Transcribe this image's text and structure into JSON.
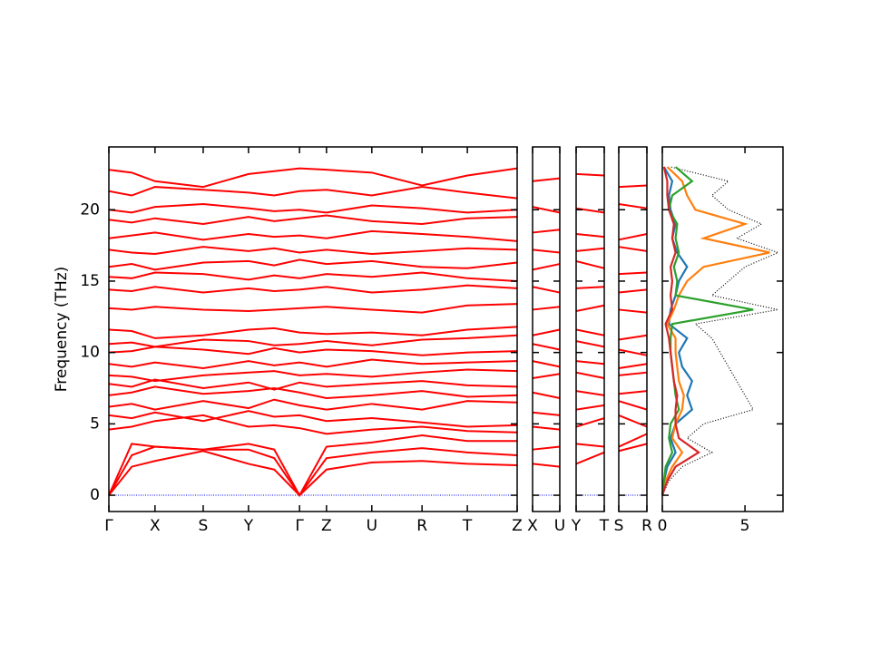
{
  "chart_data": [
    {
      "type": "band",
      "color": "#ff0000",
      "ylabel": "Frequency (THz)",
      "ylim": [
        -1.14,
        24.4
      ],
      "yticks": [
        0,
        5,
        10,
        15,
        20
      ],
      "hline": 0,
      "hline_color": "#0000ff",
      "xlim": [
        0,
        1
      ],
      "xticks": [
        {
          "value": 0,
          "label": "Γ"
        },
        {
          "value": 0.113,
          "label": "X"
        },
        {
          "value": 0.231,
          "label": "S"
        },
        {
          "value": 0.342,
          "label": "Y"
        },
        {
          "value": 0.467,
          "label": "Γ"
        },
        {
          "value": 0.533,
          "label": "Z"
        },
        {
          "value": 0.644,
          "label": "U"
        },
        {
          "value": 0.767,
          "label": "R"
        },
        {
          "value": 0.878,
          "label": "T"
        },
        {
          "value": 1,
          "label": "Z"
        }
      ],
      "x": [
        0,
        0.056,
        0.113,
        0.231,
        0.342,
        0.405,
        0.467,
        0.533,
        0.644,
        0.767,
        0.878,
        1
      ],
      "series": [
        {
          "values": [
            0,
            2.0,
            2.4,
            3.1,
            2.2,
            1.8,
            0,
            1.8,
            2.3,
            2.4,
            2.2,
            2.1
          ]
        },
        {
          "values": [
            0,
            2.8,
            3.4,
            3.2,
            3.2,
            2.6,
            0,
            2.6,
            3.0,
            3.3,
            3.0,
            2.8
          ]
        },
        {
          "values": [
            0,
            3.6,
            3.4,
            3.2,
            3.6,
            3.2,
            0,
            3.4,
            3.7,
            4.2,
            3.8,
            3.8
          ]
        },
        {
          "values": [
            4.6,
            4.8,
            5.2,
            5.6,
            4.8,
            4.9,
            4.7,
            4.3,
            4.6,
            4.8,
            4.5,
            4.4
          ]
        },
        {
          "values": [
            5.6,
            5.4,
            5.8,
            5.2,
            5.9,
            5.5,
            5.6,
            5.2,
            5.4,
            5.1,
            4.8,
            4.9
          ]
        },
        {
          "values": [
            6.2,
            6.4,
            6.0,
            6.6,
            6.1,
            6.7,
            6.3,
            6.0,
            6.4,
            6.0,
            6.6,
            6.5
          ]
        },
        {
          "values": [
            7.0,
            7.2,
            7.6,
            7.1,
            7.3,
            7.5,
            7.2,
            6.8,
            7.0,
            7.3,
            6.9,
            7.0
          ]
        },
        {
          "values": [
            7.8,
            7.6,
            8.1,
            7.5,
            7.9,
            7.4,
            7.9,
            7.6,
            7.8,
            8.0,
            7.7,
            7.6
          ]
        },
        {
          "values": [
            8.4,
            8.3,
            8.0,
            8.4,
            8.6,
            8.7,
            8.4,
            8.5,
            8.3,
            8.6,
            8.8,
            8.7
          ]
        },
        {
          "values": [
            9.2,
            9.0,
            9.3,
            8.9,
            9.4,
            9.1,
            9.3,
            9.0,
            9.5,
            9.2,
            9.3,
            9.4
          ]
        },
        {
          "values": [
            10.0,
            10.1,
            10.4,
            10.2,
            9.9,
            10.3,
            10.0,
            10.2,
            10.1,
            9.8,
            10.0,
            10.1
          ]
        },
        {
          "values": [
            10.6,
            10.7,
            10.4,
            10.9,
            10.8,
            10.5,
            10.6,
            10.8,
            10.5,
            10.9,
            11.0,
            11.2
          ]
        },
        {
          "values": [
            11.6,
            11.5,
            11.0,
            11.2,
            11.6,
            11.7,
            11.4,
            11.3,
            11.4,
            11.2,
            11.6,
            11.8
          ]
        },
        {
          "values": [
            13.1,
            13.0,
            13.2,
            13.0,
            12.9,
            13.0,
            13.1,
            13.2,
            13.0,
            12.8,
            13.3,
            13.4
          ]
        },
        {
          "values": [
            14.4,
            14.3,
            14.6,
            14.2,
            14.5,
            14.3,
            14.4,
            14.6,
            14.2,
            14.4,
            14.7,
            14.5
          ]
        },
        {
          "values": [
            15.3,
            15.2,
            15.6,
            15.5,
            15.1,
            15.4,
            15.2,
            15.5,
            15.3,
            15.6,
            15.2,
            15.0
          ]
        },
        {
          "values": [
            16.0,
            16.2,
            15.8,
            16.3,
            16.4,
            16.1,
            16.5,
            16.2,
            16.4,
            16.0,
            15.9,
            16.3
          ]
        },
        {
          "values": [
            17.2,
            17.0,
            16.9,
            17.4,
            17.1,
            17.3,
            17.0,
            17.2,
            16.9,
            17.1,
            17.3,
            17.2
          ]
        },
        {
          "values": [
            18.0,
            18.2,
            18.4,
            17.9,
            18.3,
            18.1,
            18.2,
            18.0,
            18.5,
            18.3,
            18.1,
            17.8
          ]
        },
        {
          "values": [
            19.3,
            19.1,
            19.4,
            19.0,
            19.5,
            19.2,
            19.4,
            19.6,
            19.2,
            19.0,
            19.4,
            19.5
          ]
        },
        {
          "values": [
            20.0,
            19.8,
            20.2,
            20.4,
            20.1,
            19.9,
            20.0,
            19.8,
            20.3,
            20.1,
            19.8,
            20.0
          ]
        },
        {
          "values": [
            21.3,
            21.0,
            21.6,
            21.4,
            21.2,
            21.0,
            21.3,
            21.4,
            21.0,
            21.6,
            21.2,
            20.8
          ]
        },
        {
          "values": [
            22.8,
            22.6,
            22.0,
            21.6,
            22.5,
            22.7,
            22.9,
            22.8,
            22.6,
            21.7,
            22.4,
            22.9
          ]
        }
      ]
    },
    {
      "type": "band",
      "color": "#ff0000",
      "hline": 0,
      "hline_color": "#0000ff",
      "xlim": [
        0,
        1
      ],
      "xticks": [
        {
          "value": 0,
          "label": "X"
        },
        {
          "value": 1,
          "label": "U"
        }
      ],
      "x": [
        0,
        1
      ],
      "series": [
        {
          "values": [
            2.2,
            2.0
          ]
        },
        {
          "values": [
            3.2,
            3.4
          ]
        },
        {
          "values": [
            4.8,
            4.6
          ]
        },
        {
          "values": [
            5.8,
            5.6
          ]
        },
        {
          "values": [
            7.2,
            6.8
          ]
        },
        {
          "values": [
            8.2,
            8.5
          ]
        },
        {
          "values": [
            9.4,
            9.0
          ]
        },
        {
          "values": [
            10.6,
            10.2
          ]
        },
        {
          "values": [
            11.2,
            11.6
          ]
        },
        {
          "values": [
            13.0,
            13.2
          ]
        },
        {
          "values": [
            14.6,
            14.2
          ]
        },
        {
          "values": [
            15.8,
            16.2
          ]
        },
        {
          "values": [
            17.2,
            17.0
          ]
        },
        {
          "values": [
            18.4,
            18.6
          ]
        },
        {
          "values": [
            20.2,
            19.8
          ]
        },
        {
          "values": [
            22.0,
            22.2
          ]
        }
      ]
    },
    {
      "type": "band",
      "color": "#ff0000",
      "hline": 0,
      "hline_color": "#0000ff",
      "xlim": [
        0,
        1
      ],
      "xticks": [
        {
          "value": 0,
          "label": "Y"
        },
        {
          "value": 1,
          "label": "T"
        }
      ],
      "x": [
        0,
        1
      ],
      "series": [
        {
          "values": [
            2.2,
            3.0
          ]
        },
        {
          "values": [
            3.6,
            3.4
          ]
        },
        {
          "values": [
            4.8,
            5.4
          ]
        },
        {
          "values": [
            6.0,
            6.3
          ]
        },
        {
          "values": [
            7.3,
            7.0
          ]
        },
        {
          "values": [
            8.6,
            8.2
          ]
        },
        {
          "values": [
            9.4,
            9.2
          ]
        },
        {
          "values": [
            10.8,
            10.4
          ]
        },
        {
          "values": [
            11.6,
            11.2
          ]
        },
        {
          "values": [
            12.9,
            13.3
          ]
        },
        {
          "values": [
            14.5,
            14.6
          ]
        },
        {
          "values": [
            16.4,
            15.9
          ]
        },
        {
          "values": [
            17.1,
            17.3
          ]
        },
        {
          "values": [
            18.3,
            18.1
          ]
        },
        {
          "values": [
            20.1,
            19.8
          ]
        },
        {
          "values": [
            22.5,
            22.4
          ]
        }
      ]
    },
    {
      "type": "band",
      "color": "#ff0000",
      "hline": 0,
      "hline_color": "#0000ff",
      "xlim": [
        0,
        1
      ],
      "xticks": [
        {
          "value": 0,
          "label": "S"
        },
        {
          "value": 1,
          "label": "R"
        }
      ],
      "x": [
        0,
        1
      ],
      "series": [
        {
          "values": [
            3.1,
            3.6
          ]
        },
        {
          "values": [
            3.4,
            4.3
          ]
        },
        {
          "values": [
            5.6,
            4.8
          ]
        },
        {
          "values": [
            6.6,
            6.0
          ]
        },
        {
          "values": [
            7.1,
            7.3
          ]
        },
        {
          "values": [
            8.4,
            8.6
          ]
        },
        {
          "values": [
            8.9,
            9.2
          ]
        },
        {
          "values": [
            10.2,
            9.8
          ]
        },
        {
          "values": [
            10.9,
            11.2
          ]
        },
        {
          "values": [
            13.0,
            12.8
          ]
        },
        {
          "values": [
            14.2,
            14.4
          ]
        },
        {
          "values": [
            15.5,
            15.6
          ]
        },
        {
          "values": [
            17.4,
            17.1
          ]
        },
        {
          "values": [
            17.9,
            18.3
          ]
        },
        {
          "values": [
            20.4,
            20.1
          ]
        },
        {
          "values": [
            21.6,
            21.7
          ]
        }
      ]
    },
    {
      "type": "dos",
      "xlim": [
        0,
        7.3
      ],
      "xticks": [
        0,
        5
      ],
      "frequencies": [
        0,
        1,
        2,
        3,
        4,
        5,
        6,
        7,
        8,
        9,
        10,
        11,
        12,
        13,
        14,
        15,
        16,
        17,
        18,
        19,
        20,
        21,
        22,
        23
      ],
      "series": [
        {
          "color": "#000000",
          "linestyle": "dotted",
          "values": [
            0,
            0.4,
            1.2,
            3.0,
            1.5,
            2.5,
            5.5,
            5.0,
            4.5,
            4.0,
            3.5,
            3.0,
            2.0,
            7.0,
            3.0,
            4.0,
            5.0,
            7.0,
            4.5,
            6.0,
            4.0,
            3.0,
            4.0,
            0.5
          ]
        },
        {
          "color": "#1f77b4",
          "linestyle": "solid",
          "values": [
            0,
            0.1,
            0.3,
            0.8,
            0.5,
            0.8,
            1.8,
            1.5,
            1.8,
            1.2,
            1.0,
            1.5,
            0.4,
            0.5,
            0.8,
            1.0,
            1.5,
            0.9,
            0.6,
            0.8,
            0.5,
            0.4,
            0.6,
            0.1
          ]
        },
        {
          "color": "#ff7f0e",
          "linestyle": "solid",
          "values": [
            0,
            0.2,
            0.6,
            1.2,
            0.6,
            0.8,
            1.2,
            1.3,
            1.0,
            0.9,
            0.8,
            0.8,
            0.3,
            0.7,
            1.0,
            1.5,
            2.5,
            6.5,
            2.5,
            5.0,
            2.0,
            1.5,
            1.2,
            0.3
          ]
        },
        {
          "color": "#2ca02c",
          "linestyle": "solid",
          "values": [
            0,
            0.1,
            0.2,
            0.6,
            0.4,
            0.5,
            1.0,
            0.8,
            0.7,
            0.6,
            0.5,
            0.5,
            0.6,
            5.5,
            0.8,
            0.9,
            0.7,
            1.0,
            0.8,
            0.9,
            0.4,
            0.6,
            1.8,
            0.8
          ]
        },
        {
          "color": "#d62728",
          "linestyle": "solid",
          "values": [
            0,
            0.3,
            0.8,
            2.2,
            1.0,
            0.8,
            0.8,
            0.9,
            0.7,
            0.6,
            0.5,
            0.4,
            0.2,
            0.6,
            0.5,
            0.6,
            0.5,
            0.8,
            0.6,
            0.7,
            0.4,
            0.3,
            0.3,
            0.1
          ]
        }
      ]
    }
  ]
}
